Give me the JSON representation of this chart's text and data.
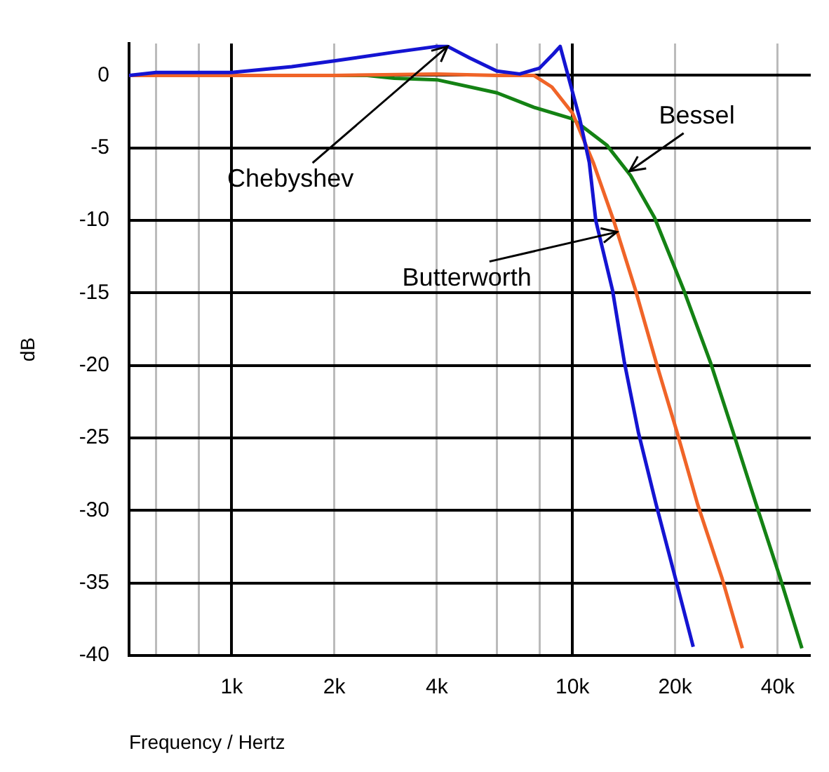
{
  "chart_data": {
    "type": "line",
    "xlabel": "Frequency / Hertz",
    "ylabel": "dB",
    "log": "x",
    "xlim": [
      500,
      50000
    ],
    "xticks": [
      {
        "value": 600,
        "label": null
      },
      {
        "value": 800,
        "label": null
      },
      {
        "value": 1000,
        "label": "1k"
      },
      {
        "value": 2000,
        "label": "2k"
      },
      {
        "value": 4000,
        "label": "4k"
      },
      {
        "value": 6000,
        "label": null
      },
      {
        "value": 8000,
        "label": null
      },
      {
        "value": 10000,
        "label": "10k"
      },
      {
        "value": 20000,
        "label": "20k"
      },
      {
        "value": 40000,
        "label": "40k"
      }
    ],
    "ylim": [
      -40,
      2.2
    ],
    "yticks": [
      -40,
      -35,
      -30,
      -25,
      -20,
      -15,
      -10,
      -5,
      0
    ],
    "grid": true,
    "legend": false,
    "marker": "none",
    "line_style": "solid",
    "series": [
      {
        "color": "#1414d2",
        "x": [
          500,
          600,
          1000,
          1500,
          2000,
          3000,
          4000,
          4300,
          5000,
          6000,
          7000,
          8000,
          8800,
          9200,
          9700,
          10500,
          11200,
          11700,
          13100,
          14200,
          15600,
          17600,
          20000,
          22600
        ],
        "values": [
          0,
          0.2,
          0.2,
          0.6,
          1.0,
          1.6,
          2.0,
          2.0,
          1.2,
          0.3,
          0.1,
          0.5,
          1.5,
          2.0,
          0,
          -3,
          -6,
          -10,
          -14.8,
          -19.8,
          -24.6,
          -29.6,
          -34.6,
          -39.4
        ]
      },
      {
        "color": "#f06428",
        "x": [
          500,
          2000,
          4000,
          6000,
          7700,
          8700,
          10000,
          11500,
          13200,
          15300,
          17600,
          20200,
          23300,
          27400,
          31500
        ],
        "values": [
          0,
          0,
          0.1,
          0,
          0,
          -0.8,
          -2.6,
          -6,
          -10,
          -14.8,
          -19.8,
          -24.5,
          -29.6,
          -34.6,
          -39.5
        ]
      },
      {
        "color": "#148214",
        "x": [
          500,
          2500,
          3000,
          4000,
          6000,
          7700,
          10000,
          12600,
          14800,
          17400,
          21200,
          25400,
          29500,
          34600,
          40600,
          47100
        ],
        "values": [
          0,
          0,
          -0.2,
          -0.3,
          -1.2,
          -2.2,
          -3,
          -4.8,
          -6.9,
          -9.8,
          -14.8,
          -19.8,
          -24.5,
          -29.6,
          -34.6,
          -39.5
        ]
      }
    ],
    "annotations": [
      {
        "text": "Chebyshev",
        "x": 4300,
        "y": 2
      },
      {
        "text": "Bessel",
        "x": 14700,
        "y": -6.6
      },
      {
        "text": "Butterworth",
        "x": 13500,
        "y": -10.8
      }
    ]
  }
}
